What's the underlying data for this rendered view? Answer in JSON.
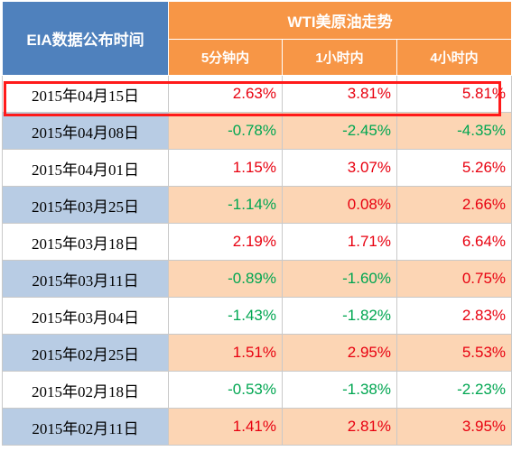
{
  "header": {
    "date_col": "EIA数据公布时间",
    "group": "WTI美原油走势",
    "sub": [
      "5分钟内",
      "1小时内",
      "4小时内"
    ]
  },
  "colors": {
    "positive": "#e8000f",
    "negative": "#00a651",
    "highlight_border": "#ff1a1a"
  },
  "highlighted_row": 0,
  "rows": [
    {
      "date": "2015年04月15日",
      "v5m": "2.63%",
      "v1h": "3.81%",
      "v4h": "5.81%"
    },
    {
      "date": "2015年04月08日",
      "v5m": "-0.78%",
      "v1h": "-2.45%",
      "v4h": "-4.35%"
    },
    {
      "date": "2015年04月01日",
      "v5m": "1.15%",
      "v1h": "3.07%",
      "v4h": "5.26%"
    },
    {
      "date": "2015年03月25日",
      "v5m": "-1.14%",
      "v1h": "0.08%",
      "v4h": "2.66%"
    },
    {
      "date": "2015年03月18日",
      "v5m": "2.19%",
      "v1h": "1.71%",
      "v4h": "6.64%"
    },
    {
      "date": "2015年03月11日",
      "v5m": "-0.89%",
      "v1h": "-1.60%",
      "v4h": "0.75%"
    },
    {
      "date": "2015年03月04日",
      "v5m": "-1.43%",
      "v1h": "-1.82%",
      "v4h": "2.83%"
    },
    {
      "date": "2015年02月25日",
      "v5m": "1.51%",
      "v1h": "2.95%",
      "v4h": "5.53%"
    },
    {
      "date": "2015年02月18日",
      "v5m": "-0.53%",
      "v1h": "-1.38%",
      "v4h": "-2.23%"
    },
    {
      "date": "2015年02月11日",
      "v5m": "1.41%",
      "v1h": "2.81%",
      "v4h": "3.95%"
    }
  ]
}
